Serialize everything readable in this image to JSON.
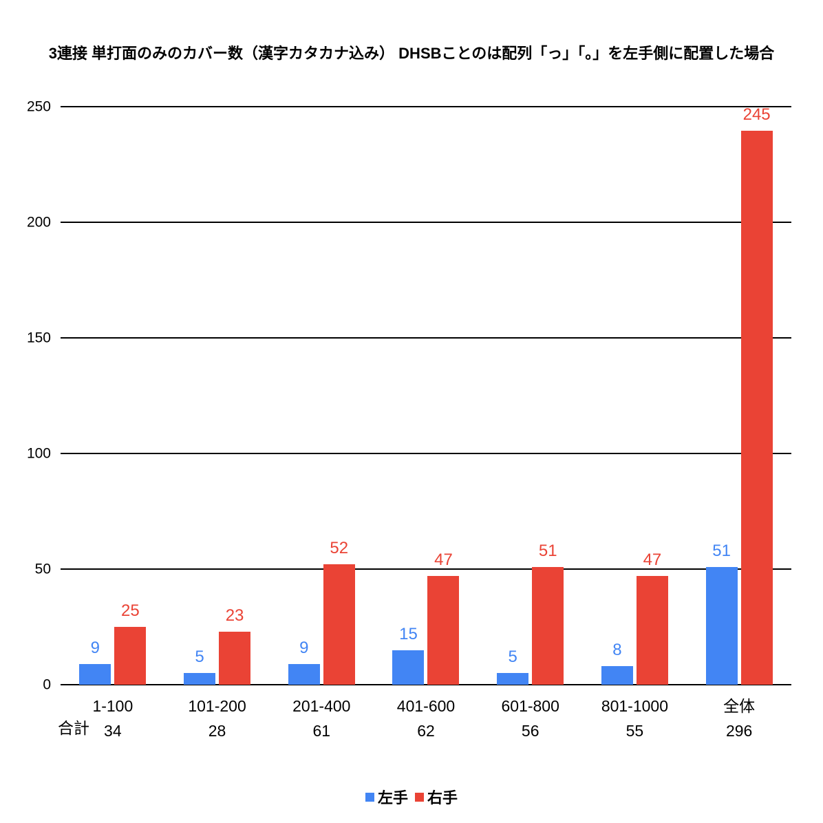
{
  "title": "3連接 単打面のみのカバー数（漢字カタカナ込み） DHSBことのは配列「っ」「。」を左手側に配置した場合",
  "totals_label": "合計",
  "colors": {
    "left_hand": "#4285F4",
    "right_hand": "#EA4335",
    "axis": "#000000",
    "background": "#FFFFFF"
  },
  "legend": {
    "items": [
      {
        "label": "左手",
        "color": "#4285F4"
      },
      {
        "label": "右手",
        "color": "#EA4335"
      }
    ]
  },
  "chart_data": {
    "type": "bar",
    "title": "3連接 単打面のみのカバー数（漢字カタカナ込み） DHSBことのは配列「っ」「。」を左手側に配置した場合",
    "categories": [
      "1-100",
      "101-200",
      "201-400",
      "401-600",
      "601-800",
      "801-1000",
      "全体"
    ],
    "series": [
      {
        "name": "左手",
        "color": "#4285F4",
        "values": [
          9,
          5,
          9,
          15,
          5,
          8,
          51
        ]
      },
      {
        "name": "右手",
        "color": "#EA4335",
        "values": [
          25,
          23,
          52,
          47,
          51,
          47,
          245
        ]
      }
    ],
    "totals": [
      34,
      28,
      61,
      62,
      56,
      55,
      296
    ],
    "totals_row_label": "合計",
    "xlabel": "",
    "ylabel": "",
    "ylim": [
      0,
      250
    ],
    "yticks": [
      0,
      50,
      100,
      150,
      200,
      250
    ],
    "grid": true,
    "value_labels": true,
    "legend_position": "bottom"
  }
}
